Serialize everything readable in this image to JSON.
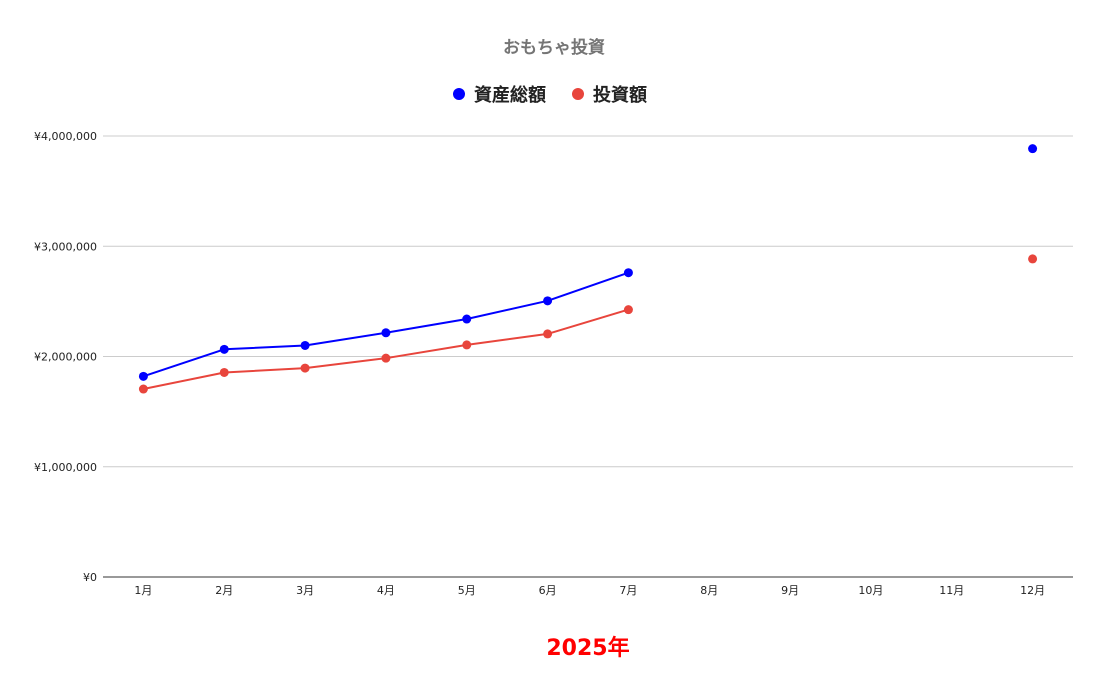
{
  "chart_data": {
    "type": "line",
    "title": "おもちゃ投資",
    "xlabel": "2025年",
    "ylabel": "",
    "categories": [
      "1月",
      "2月",
      "3月",
      "4月",
      "5月",
      "6月",
      "7月",
      "8月",
      "9月",
      "10月",
      "11月",
      "12月"
    ],
    "series": [
      {
        "name": "資産総額",
        "color": "#0000ff",
        "values": [
          1820000,
          2065000,
          2100000,
          2215000,
          2340000,
          2505000,
          2760000,
          null,
          null,
          null,
          null,
          3885000
        ]
      },
      {
        "name": "投資額",
        "color": "#e8453c",
        "values": [
          1705000,
          1855000,
          1895000,
          1985000,
          2105000,
          2205000,
          2425000,
          null,
          null,
          null,
          null,
          2885000
        ]
      }
    ],
    "ylim": [
      0,
      4000000
    ],
    "yticks": [
      0,
      1000000,
      2000000,
      3000000,
      4000000
    ],
    "ytick_labels": [
      "¥0",
      "¥1,000,000",
      "¥2,000,000",
      "¥3,000,000",
      "¥4,000,000"
    ],
    "grid": true,
    "legend": "top-center",
    "xlabel_color": "#ff0000"
  }
}
